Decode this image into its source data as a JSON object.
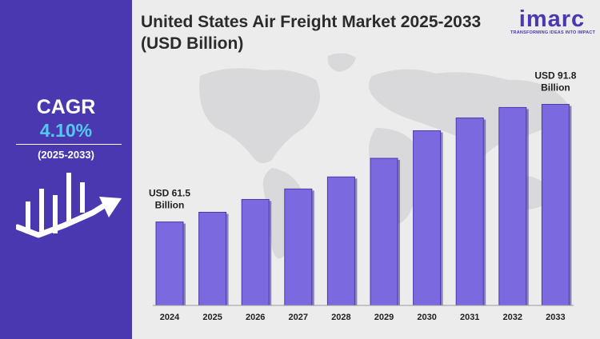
{
  "title": "United States Air Freight Market 2025-2033 (USD Billion)",
  "brand": {
    "name": "imarc",
    "tagline": "TRANSFORMING IDEAS INTO IMPACT",
    "color": "#4a38b0"
  },
  "left_panel": {
    "cagr_label": "CAGR",
    "cagr_value": "4.10%",
    "cagr_period": "(2025-2033)",
    "accent_color": "#54c9f0",
    "icon": "growth-chart-arrow-icon"
  },
  "chart_data": {
    "type": "bar",
    "title": "United States Air Freight Market 2025-2033 (USD Billion)",
    "categories": [
      "2024",
      "2025",
      "2026",
      "2027",
      "2028",
      "2029",
      "2030",
      "2031",
      "2032",
      "2033"
    ],
    "values": [
      61.5,
      64.0,
      67.3,
      70.0,
      73.1,
      77.9,
      85.0,
      88.3,
      91.0,
      91.8
    ],
    "xlabel": "",
    "ylabel": "",
    "ylim": [
      40,
      95
    ],
    "bar_color": "#7b69df",
    "grid": false,
    "annotations": [
      {
        "category": "2024",
        "line1": "USD 61.5",
        "line2": "Billion"
      },
      {
        "category": "2033",
        "line1": "USD 91.8",
        "line2": "Billion"
      }
    ]
  }
}
